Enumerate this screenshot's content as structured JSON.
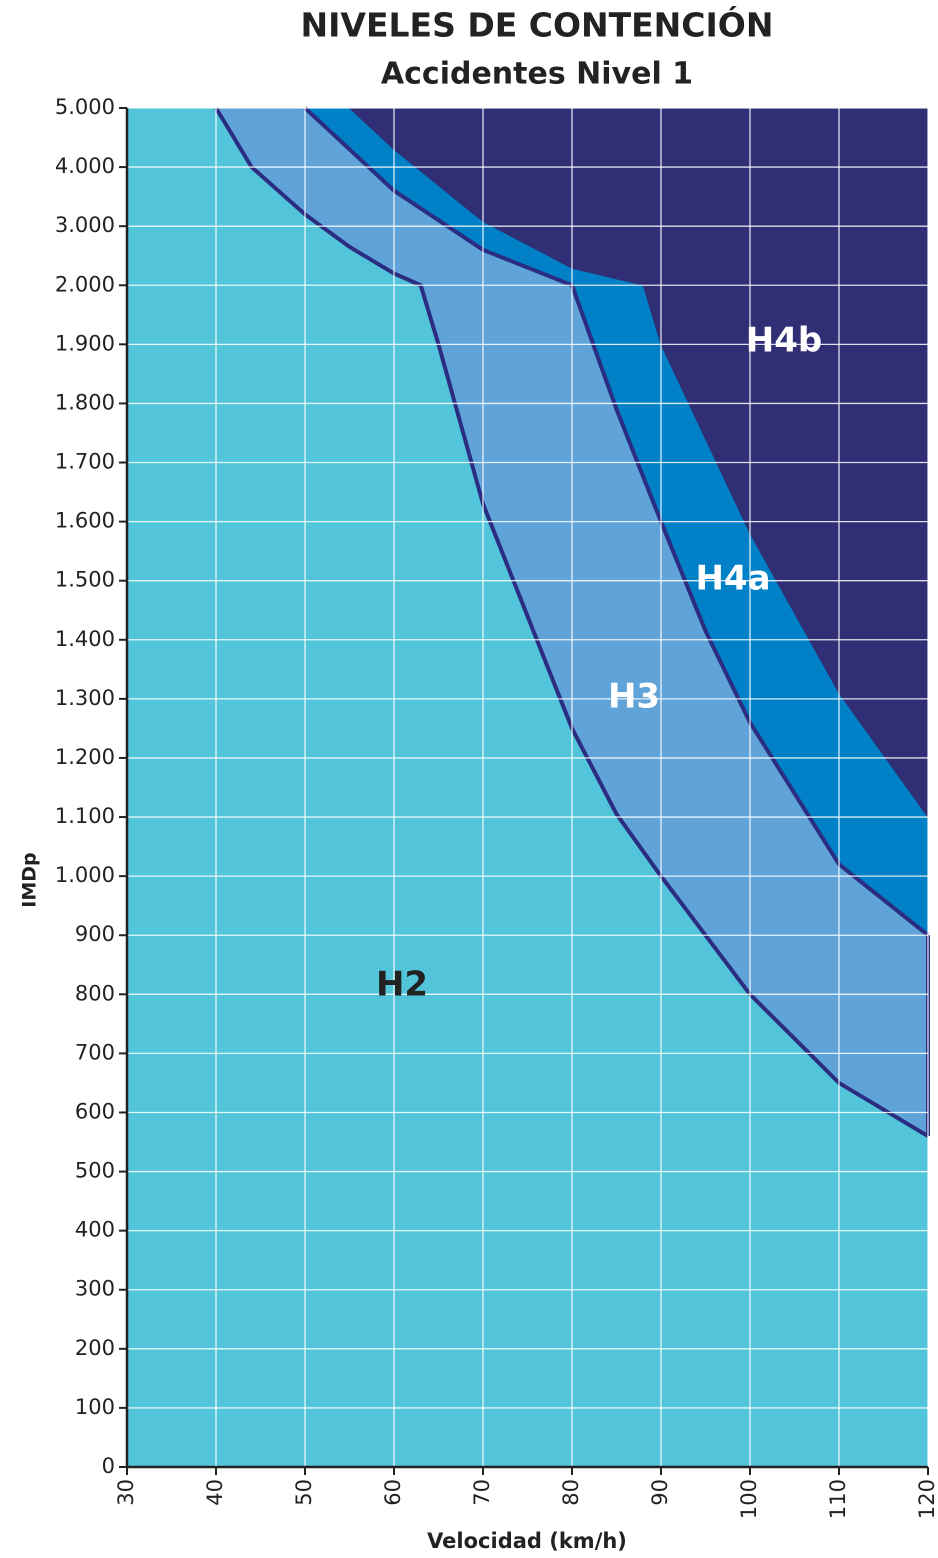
{
  "chart_data": {
    "type": "area",
    "title": "NIVELES DE CONTENCIÓN",
    "subtitle": "Accidentes Nivel 1",
    "xlabel": "Velocidad (km/h)",
    "ylabel": "IMDp",
    "xlim": [
      30,
      120
    ],
    "ylim": [
      0,
      5000
    ],
    "xticks": [
      30,
      40,
      50,
      60,
      70,
      80,
      90,
      100,
      110,
      120
    ],
    "yticks": [
      0,
      100,
      200,
      300,
      400,
      500,
      600,
      700,
      800,
      900,
      {
        "value": 1000,
        "label": "1.000"
      },
      {
        "value": 1100,
        "label": "1.100"
      },
      {
        "value": 1200,
        "label": "1.200"
      },
      {
        "value": 1300,
        "label": "1.300"
      },
      {
        "value": 1400,
        "label": "1.400"
      },
      {
        "value": 1500,
        "label": "1.500"
      },
      {
        "value": 1600,
        "label": "1.600"
      },
      {
        "value": 1700,
        "label": "1.700"
      },
      {
        "value": 1800,
        "label": "1.800"
      },
      {
        "value": 1900,
        "label": "1.900"
      },
      {
        "value": 2000,
        "label": "2.000"
      },
      {
        "value": 3000,
        "label": "3.000"
      },
      {
        "value": 4000,
        "label": "4.000"
      },
      {
        "value": 5000,
        "label": "5.000"
      }
    ],
    "grid": true,
    "series": [
      {
        "name": "H2",
        "color": "#52c5da"
      },
      {
        "name": "H3",
        "color": "#5fa3d9",
        "outlined": true,
        "x": [
          40,
          44,
          50,
          55,
          60,
          63,
          65,
          70,
          75,
          80,
          85,
          90,
          100,
          110,
          120
        ],
        "values": [
          5000,
          4000,
          3200,
          2650,
          2200,
          2000,
          1900,
          1630,
          1440,
          1250,
          1105,
          1000,
          800,
          650,
          560
        ]
      },
      {
        "name": "H4a",
        "color": "#0080c6",
        "outlined": true,
        "x": [
          50,
          60,
          70,
          80,
          85,
          90,
          95,
          100,
          110,
          120
        ],
        "values": [
          5000,
          3600,
          2600,
          2000,
          1790,
          1600,
          1415,
          1260,
          1020,
          900
        ]
      },
      {
        "name": "H4b",
        "color": "#302e75",
        "outlined": false,
        "x": [
          55,
          60,
          70,
          80,
          88,
          90,
          100,
          110,
          120
        ],
        "values": [
          5000,
          4300,
          3080,
          2290,
          2000,
          1900,
          1580,
          1310,
          1100
        ]
      }
    ]
  }
}
